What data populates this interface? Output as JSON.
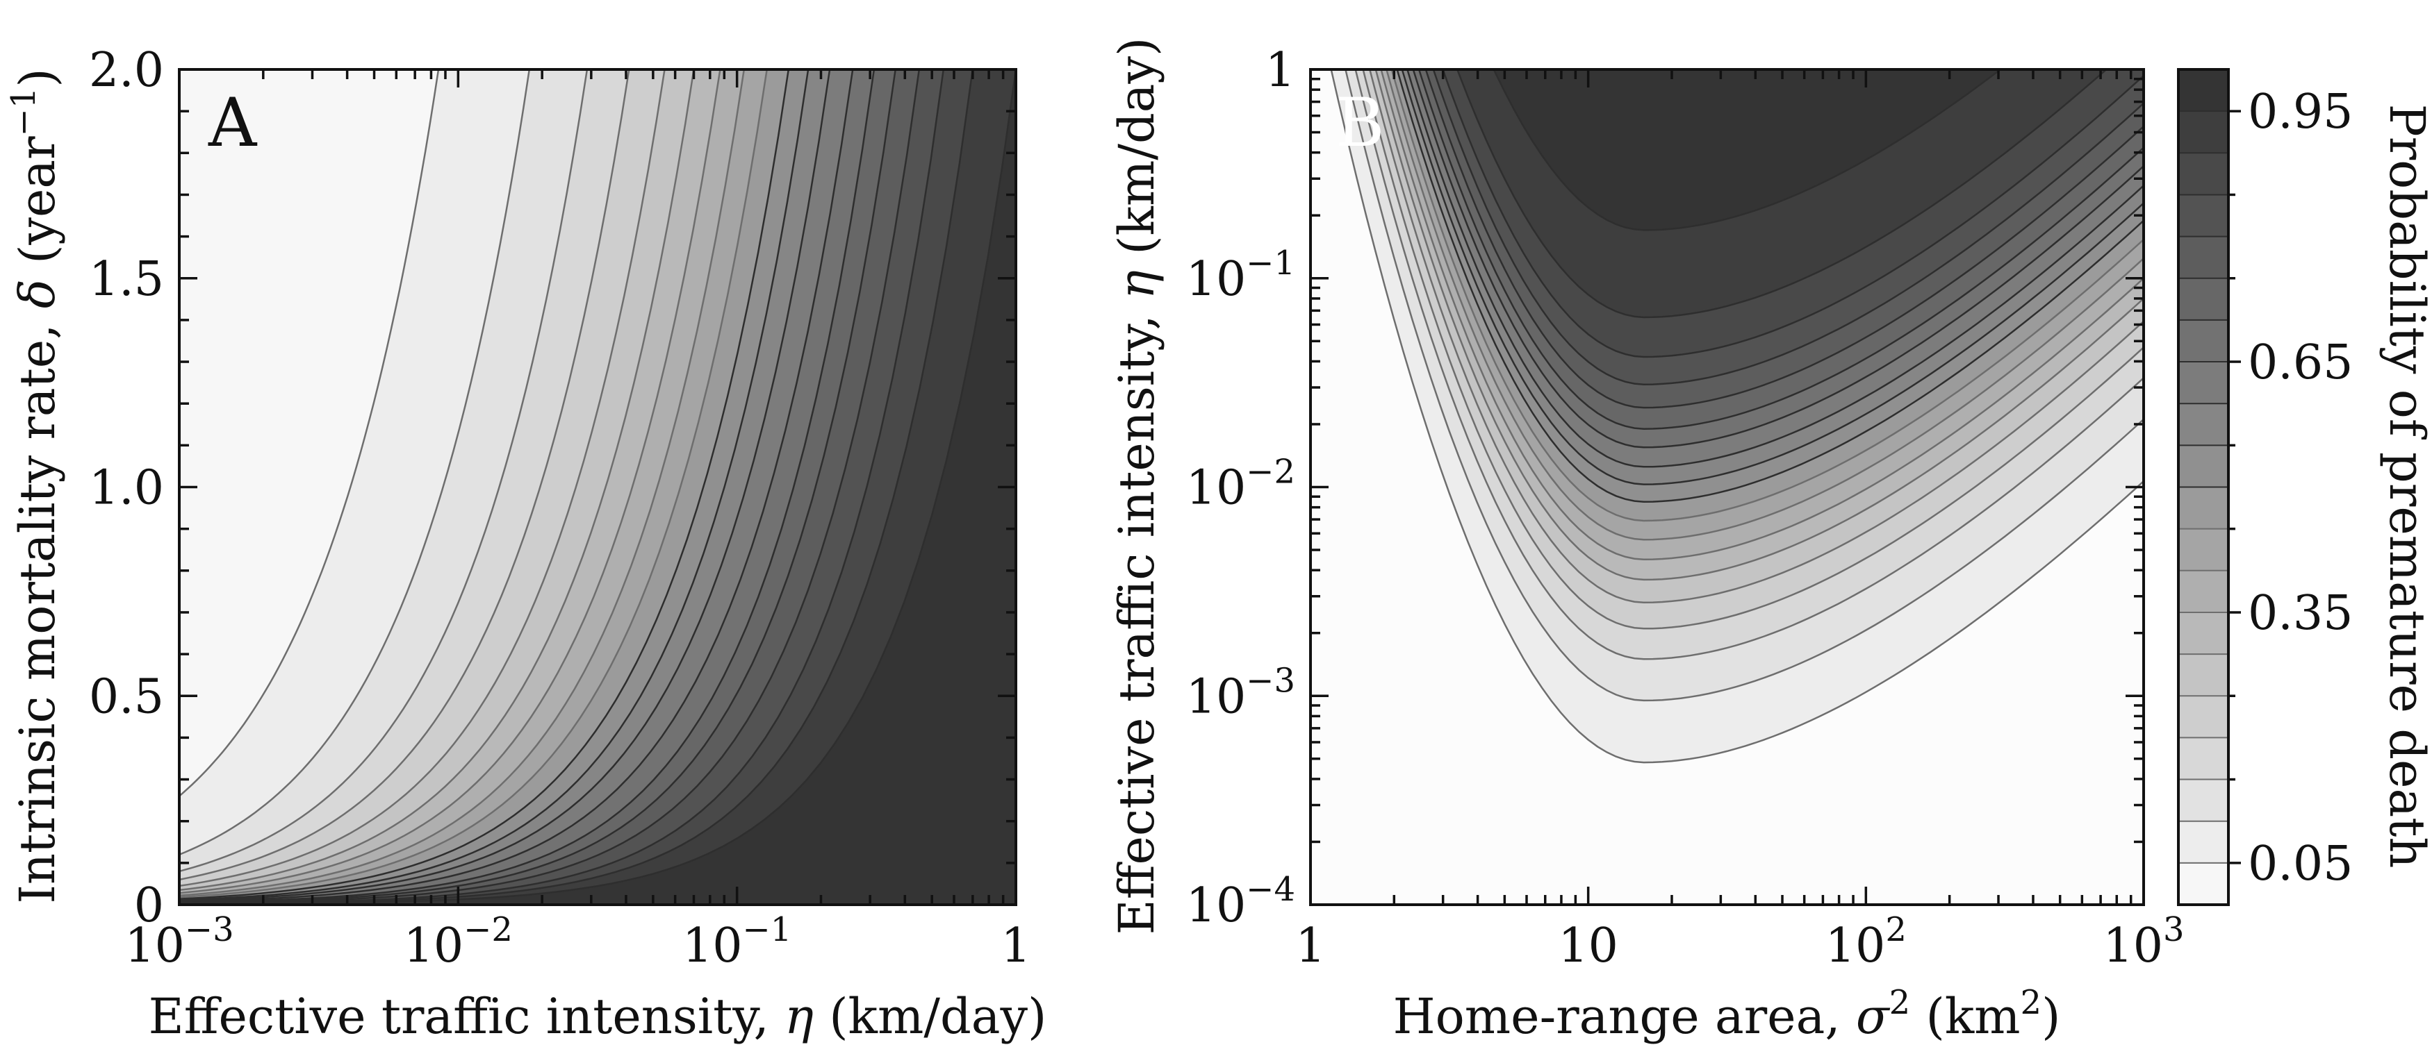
{
  "chart_data": [
    {
      "type": "contour",
      "panel_label": "A",
      "x": {
        "label_prefix": "Effective traffic intensity, ",
        "label_symbol": "η",
        "label_suffix": " (km/day)",
        "scale": "log",
        "range": [
          0.001,
          1
        ],
        "ticks": [
          {
            "value": 0.001,
            "base": "10",
            "exp": "−3"
          },
          {
            "value": 0.01,
            "base": "10",
            "exp": "−2"
          },
          {
            "value": 0.1,
            "base": "10",
            "exp": "−1"
          },
          {
            "value": 1,
            "base": "1",
            "exp": ""
          }
        ]
      },
      "y": {
        "label_prefix": "Intrinsic mortality rate, ",
        "label_symbol": "δ",
        "label_suffix": " (year",
        "label_sup": "−1",
        "label_close": ")",
        "scale": "linear",
        "range": [
          0,
          2.0
        ],
        "ticks": [
          {
            "value": 0,
            "label": "0"
          },
          {
            "value": 0.5,
            "label": "0.5"
          },
          {
            "value": 1.0,
            "label": "1.0"
          },
          {
            "value": 1.5,
            "label": "1.5"
          },
          {
            "value": 2.0,
            "label": "2.0"
          }
        ]
      },
      "contour_levels": [
        0.05,
        0.1,
        0.15,
        0.2,
        0.25,
        0.3,
        0.35,
        0.4,
        0.45,
        0.5,
        0.55,
        0.6,
        0.65,
        0.7,
        0.75,
        0.8,
        0.85,
        0.9,
        0.95
      ],
      "contours_eta_at_delta_2": [
        0.0085,
        0.018,
        0.029,
        0.041,
        0.055,
        0.07,
        0.087,
        0.106,
        0.128,
        0.153,
        0.18,
        0.215,
        0.26,
        0.31,
        0.37,
        0.45,
        0.55,
        0.7,
        1.0
      ],
      "contours_delta_at_eta_0_001": [
        0.26,
        0.12,
        0.08,
        0.06,
        0.045,
        0.035,
        0.028,
        0.022,
        0.018,
        0.014,
        0.011,
        0.009,
        0.007,
        0.005,
        0.004,
        0.003,
        0.002,
        0.0015,
        0.001
      ],
      "grid": false,
      "colormap": "greys"
    },
    {
      "type": "contour",
      "panel_label": "B",
      "x": {
        "label_prefix": "Home-range area, ",
        "label_symbol": "σ",
        "label_sup": "2",
        "label_suffix": " (km",
        "label_sup2": "2",
        "label_close": ")",
        "scale": "log",
        "range": [
          1,
          1000
        ],
        "ticks": [
          {
            "value": 1,
            "base": "1",
            "exp": ""
          },
          {
            "value": 10,
            "base": "10",
            "exp": ""
          },
          {
            "value": 100,
            "base": "10",
            "exp": "2"
          },
          {
            "value": 1000,
            "base": "10",
            "exp": "3"
          }
        ]
      },
      "y": {
        "label_prefix": "Effective traffic intensity, ",
        "label_symbol": "η",
        "label_suffix": " (km/day)",
        "scale": "log",
        "range": [
          0.0001,
          1
        ],
        "ticks": [
          {
            "value": 0.0001,
            "base": "10",
            "exp": "−4"
          },
          {
            "value": 0.001,
            "base": "10",
            "exp": "−3"
          },
          {
            "value": 0.01,
            "base": "10",
            "exp": "−2"
          },
          {
            "value": 0.1,
            "base": "10",
            "exp": "−1"
          },
          {
            "value": 1,
            "base": "1",
            "exp": ""
          }
        ]
      },
      "contour_levels": [
        0.05,
        0.1,
        0.15,
        0.2,
        0.25,
        0.3,
        0.35,
        0.4,
        0.45,
        0.5,
        0.55,
        0.6,
        0.65,
        0.7,
        0.75,
        0.8,
        0.85,
        0.9,
        0.95
      ],
      "contour_minimum_sigma2": 16,
      "contours_eta_at_minimum": [
        0.00048,
        0.00095,
        0.0015,
        0.0021,
        0.0028,
        0.0036,
        0.0045,
        0.0056,
        0.0069,
        0.0085,
        0.0103,
        0.0125,
        0.0155,
        0.019,
        0.024,
        0.031,
        0.042,
        0.065,
        0.17
      ],
      "grid": false,
      "colormap": "greys"
    }
  ],
  "colorbar": {
    "label": "Probability of premature death",
    "range": [
      0,
      1
    ],
    "levels": [
      0,
      0.05,
      0.1,
      0.15,
      0.2,
      0.25,
      0.3,
      0.35,
      0.4,
      0.45,
      0.5,
      0.55,
      0.6,
      0.65,
      0.7,
      0.75,
      0.8,
      0.85,
      0.9,
      0.95,
      1.0
    ],
    "tick_labels": [
      {
        "value": 0.05,
        "label": "0.05"
      },
      {
        "value": 0.35,
        "label": "0.35"
      },
      {
        "value": 0.65,
        "label": "0.65"
      },
      {
        "value": 0.95,
        "label": "0.95"
      }
    ]
  }
}
